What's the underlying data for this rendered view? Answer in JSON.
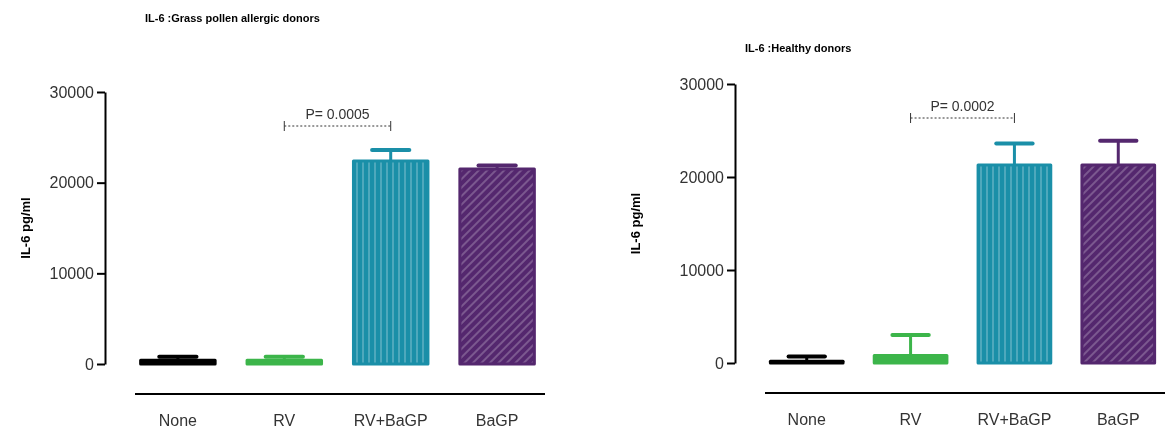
{
  "chart_data": [
    {
      "type": "bar",
      "title": "IL-6 :Grass pollen allergic donors",
      "ylabel": "IL-6 pg/ml",
      "categories": [
        "None",
        "RV",
        "RV+BaGP",
        "BaGP"
      ],
      "values": [
        400,
        400,
        22400,
        21500
      ],
      "errors": [
        [
          400,
          800
        ],
        [
          400,
          800
        ],
        [
          22400,
          23600
        ],
        [
          21500,
          21900
        ]
      ],
      "colors": [
        "#000000",
        "#3cb54a",
        "#1a8fa8",
        "#54276e"
      ],
      "ylim": [
        0,
        30000
      ],
      "yticks": [
        0,
        10000,
        20000,
        30000
      ],
      "annotations": [
        "P= 0.0005"
      ],
      "grid": false
    },
    {
      "type": "bar",
      "title": "IL-6 :Healthy donors",
      "ylabel": "IL-6 pg/ml",
      "categories": [
        "None",
        "RV",
        "RV+BaGP",
        "BaGP"
      ],
      "values": [
        200,
        800,
        21300,
        21300
      ],
      "errors": [
        [
          200,
          700
        ],
        [
          800,
          3000
        ],
        [
          21300,
          23600
        ],
        [
          21300,
          23900
        ]
      ],
      "colors": [
        "#000000",
        "#3cb54a",
        "#1a8fa8",
        "#54276e"
      ],
      "ylim": [
        0,
        30000
      ],
      "yticks": [
        0,
        10000,
        20000,
        30000
      ],
      "annotations": [
        "P= 0.0002"
      ],
      "grid": false
    }
  ]
}
